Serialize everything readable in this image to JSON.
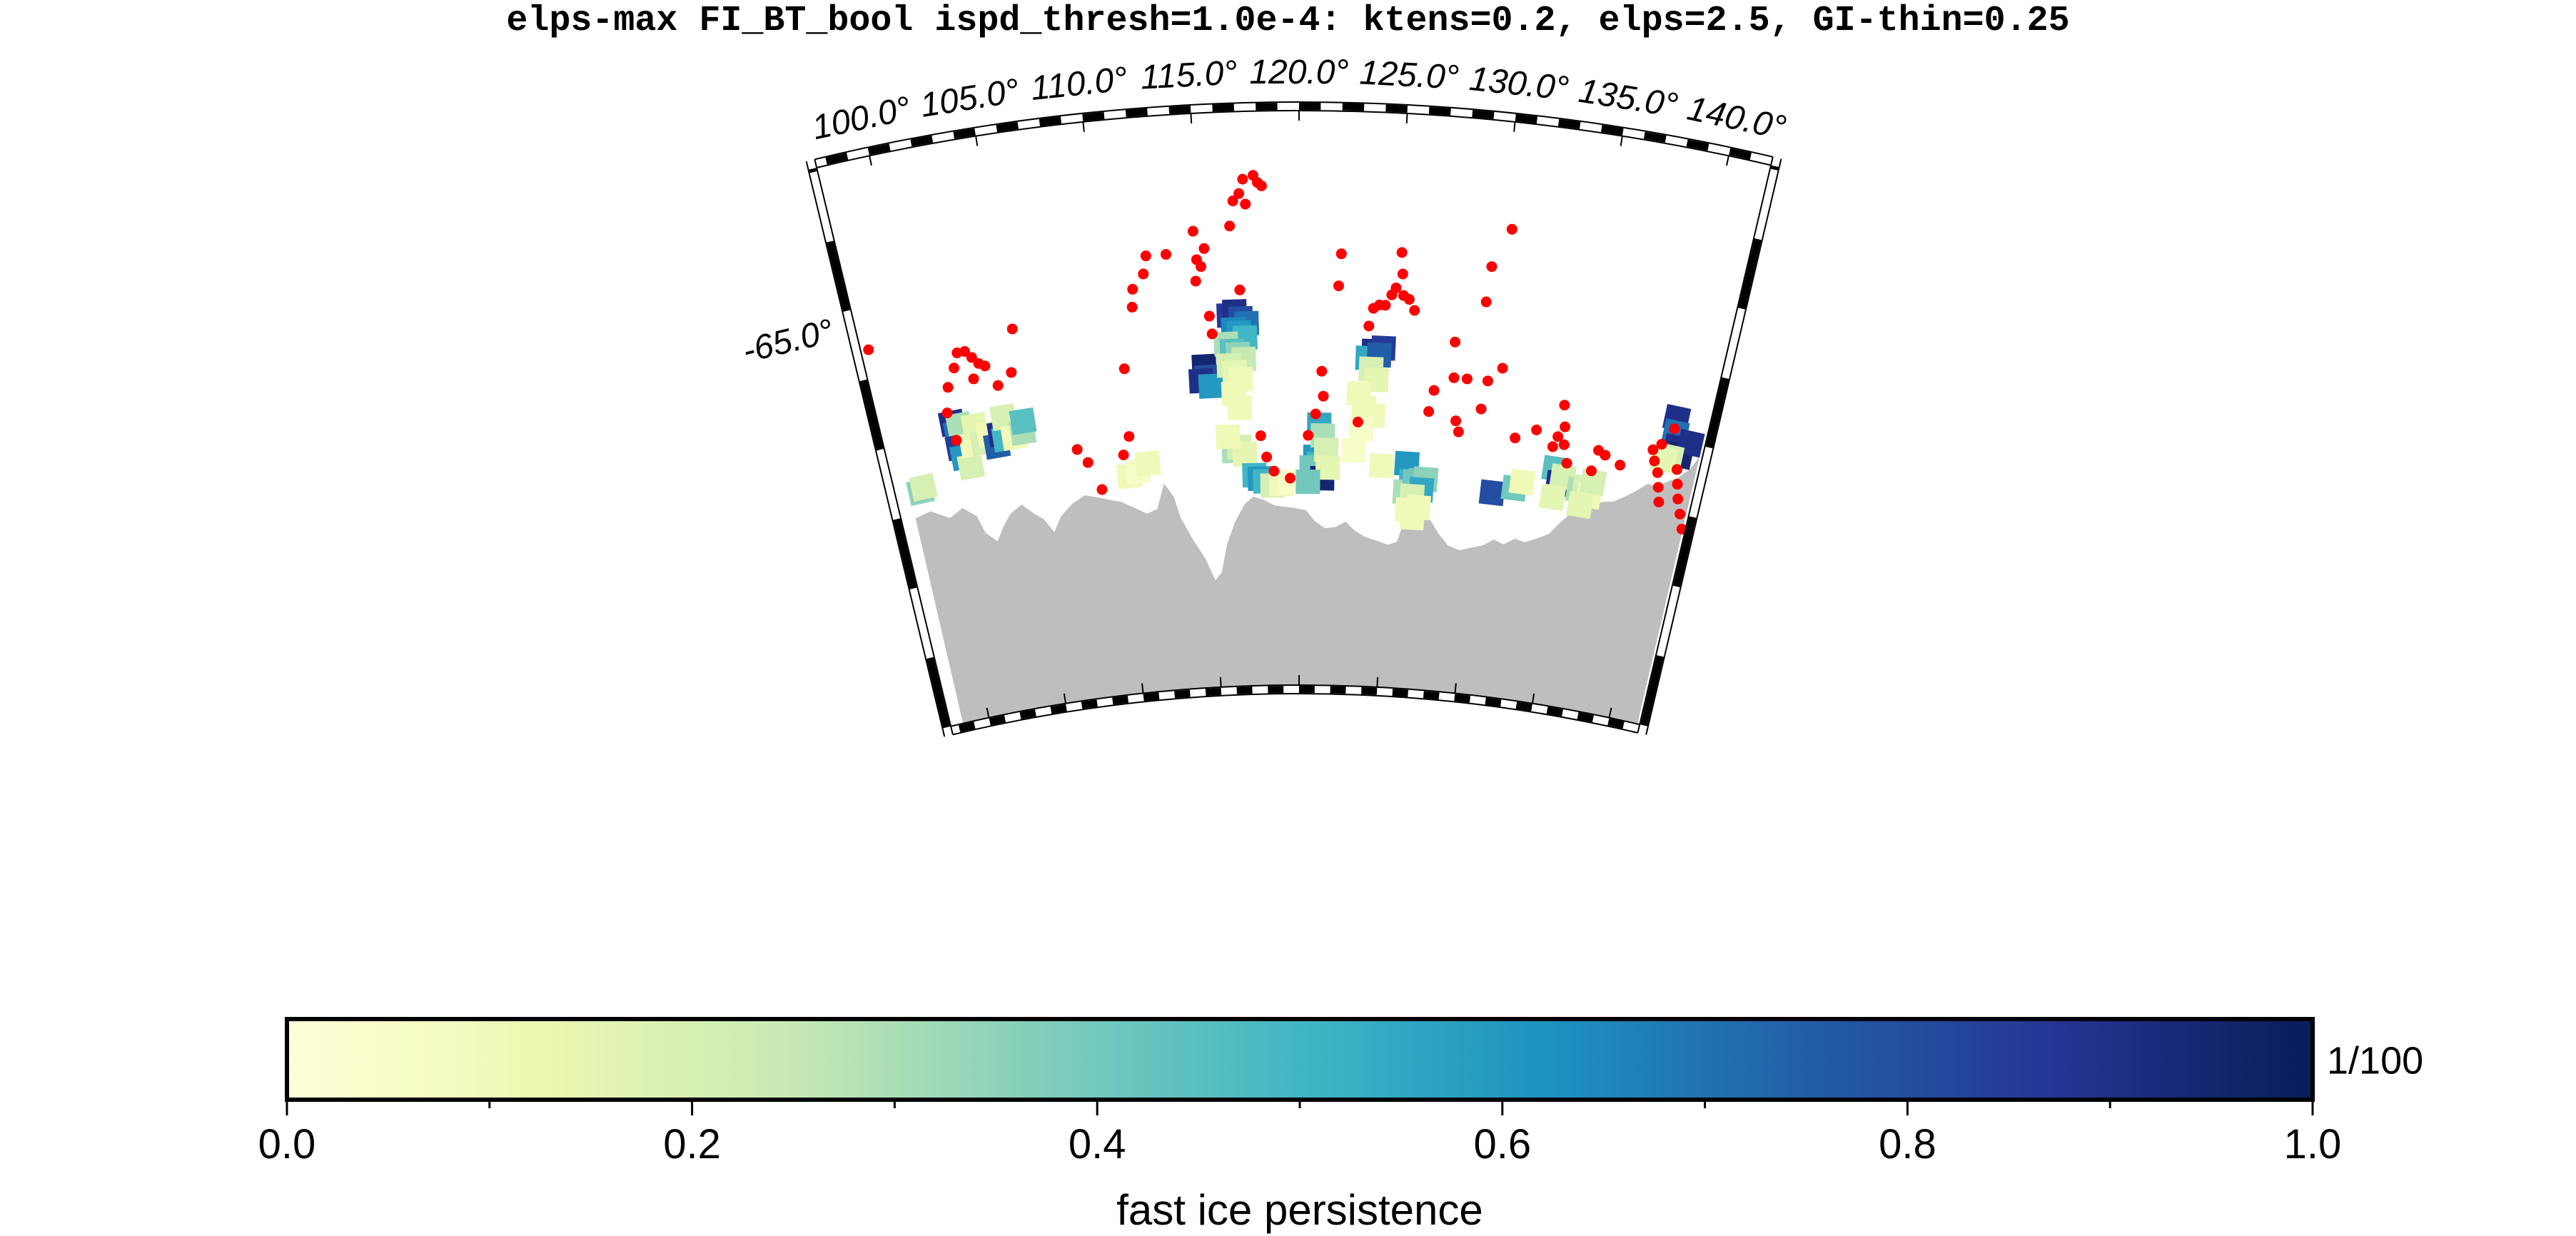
{
  "title": "elps-max FI_BT_bool ispd_thresh=1.0e-4: ktens=0.2, elps=2.5, GI-thin=0.25",
  "map": {
    "longitude_labels": [
      "100.0°",
      "105.0°",
      "110.0°",
      "115.0°",
      "120.0°",
      "125.0°",
      "130.0°",
      "135.0°",
      "140.0°"
    ],
    "latitude_labels": [
      "-65.0°"
    ],
    "land_color": "#bebebe",
    "point_color": "#ff0000"
  },
  "colorbar": {
    "label": "fast ice persistence",
    "unit_label": "1/100",
    "tick_labels": [
      "0.0",
      "0.2",
      "0.4",
      "0.6",
      "0.8",
      "1.0"
    ],
    "range": [
      0.0,
      1.0
    ],
    "colormap": "YlGnBu",
    "stops": [
      "#ffffd9",
      "#edf8b1",
      "#c7e9b4",
      "#7fcdbb",
      "#41b6c4",
      "#1d91c0",
      "#225ea8",
      "#253494",
      "#081d58"
    ]
  }
}
